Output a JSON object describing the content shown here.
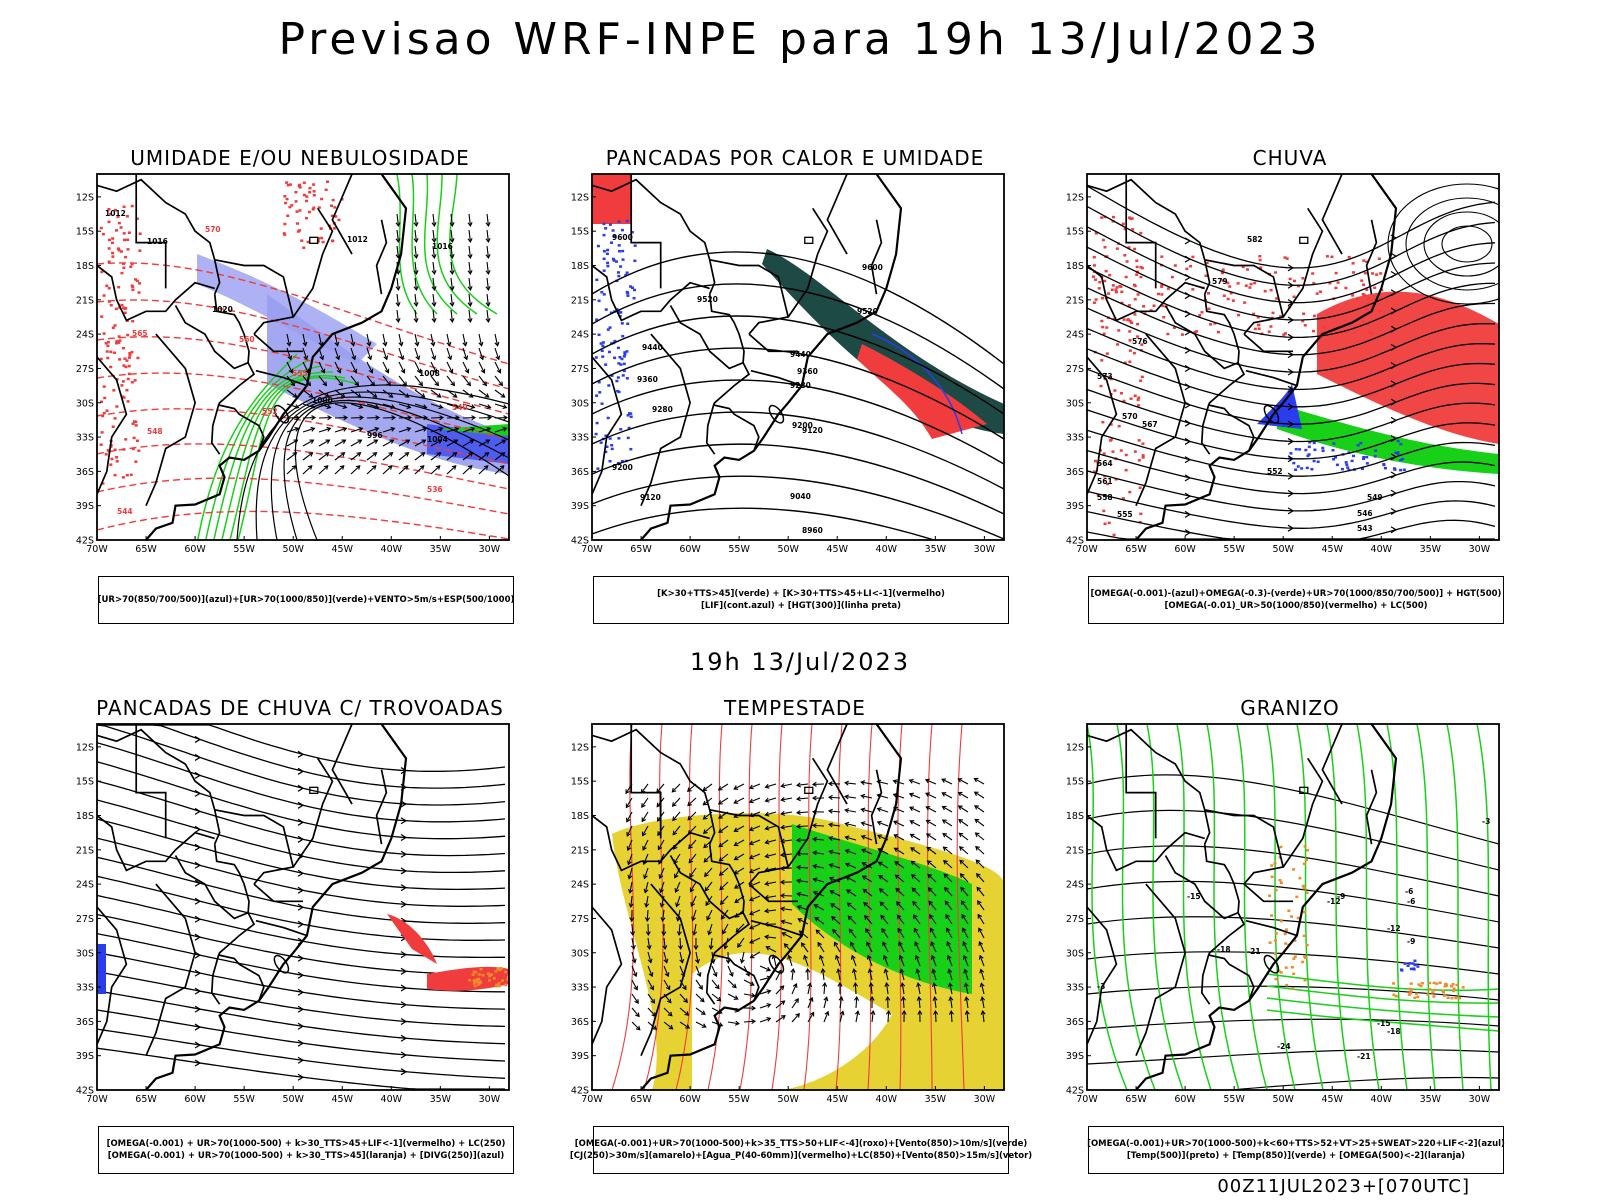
{
  "title": "Previsao WRF-INPE  para 19h 13/Jul/2023",
  "subtitle": "19h 13/Jul/2023",
  "footer": "00Z11JUL2023+[070UTC]",
  "axes": {
    "lat_labels": [
      "12S",
      "15S",
      "18S",
      "21S",
      "24S",
      "27S",
      "30S",
      "33S",
      "36S",
      "39S",
      "42S"
    ],
    "lon_labels": [
      "70W",
      "65W",
      "60W",
      "55W",
      "50W",
      "45W",
      "40W",
      "35W",
      "30W"
    ]
  },
  "colors": {
    "blue": "#2a3cf0",
    "lightblue": "#9a9ef0",
    "green": "#18d018",
    "red": "#f03c3c",
    "orange": "#f08c28",
    "yellow": "#e6d232",
    "darkteal": "#1e4a46",
    "black": "#000000"
  },
  "panels": [
    {
      "key": "umidade",
      "title": "UMIDADE E/OU NEBULOSIDADE",
      "legend": [
        "[UR>70(850/700/500)](azul)+[UR>70(1000/850)](verde)+VENTO>5m/s+ESP(500/1000)"
      ],
      "contour_labels": [
        "1012",
        "1016",
        "1020",
        "1016",
        "1012",
        "1008",
        "1004",
        "1000",
        "996"
      ],
      "red_labels": [
        "570",
        "565",
        "560",
        "555",
        "552",
        "548",
        "544",
        "540",
        "536"
      ]
    },
    {
      "key": "pancadas_calor",
      "title": "PANCADAS POR CALOR E UMIDADE",
      "legend": [
        "[K>30+TTS>45](verde) + [K>30+TTS>45+LI<-1](vermelho)",
        "[LIF](cont.azul) + [HGT(300)](linha preta)"
      ],
      "contour_labels": [
        "9600",
        "9600",
        "9520",
        "9520",
        "9440",
        "9440",
        "9360",
        "9360",
        "9280",
        "9280",
        "9200",
        "9200",
        "9120",
        "9120",
        "9040",
        "8960"
      ]
    },
    {
      "key": "chuva",
      "title": "CHUVA",
      "legend": [
        "[OMEGA(-0.001)-(azul)+OMEGA(-0.3)-(verde)+UR>70(1000/850/700/500)] + HGT(500)",
        "[OMEGA(-0.01)_UR>50(1000/850)(vermelho) + LC(500)"
      ],
      "contour_labels": [
        "582",
        "579",
        "576",
        "573",
        "570",
        "567",
        "564",
        "561",
        "558",
        "555",
        "552",
        "549",
        "546",
        "543"
      ]
    },
    {
      "key": "trovoadas",
      "title": "PANCADAS DE CHUVA C/ TROVOADAS",
      "legend": [
        "[OMEGA(-0.001) + UR>70(1000-500) + k>30_TTS>45+LIF<-1](vermelho) + LC(250)",
        "[OMEGA(-0.001) + UR>70(1000-500) + k>30_TTS>45](laranja) + [DIVG(250)](azul)"
      ],
      "contour_labels": []
    },
    {
      "key": "tempestade",
      "title": "TEMPESTADE",
      "legend": [
        "[OMEGA(-0.001)+UR>70(1000-500)+k>35_TTS>50+LIF<-4](roxo)+[Vento(850)>10m/s](verde)",
        "[CJ(250)>30m/s](amarelo)+[Agua_P(40-60mm)](vermelho)+LC(850)+[Vento(850)>15m/s](vetor)"
      ],
      "contour_labels": []
    },
    {
      "key": "granizo",
      "title": "GRANIZO",
      "legend": [
        "[OMEGA(-0.001)+UR>70(1000-500)+k<60+TTS>52+VT>25+SWEAT>220+LIF<-2](azul)",
        "[Temp(500)](preto) + [Temp(850)](verde) + [OMEGA(500)<-2](laranja)"
      ],
      "contour_labels": [
        "-3",
        "-6",
        "-9",
        "-12",
        "-15",
        "-18",
        "-21",
        "-24",
        "-21",
        "-18",
        "-15",
        "-12",
        "-9",
        "-6",
        "-3"
      ]
    }
  ]
}
